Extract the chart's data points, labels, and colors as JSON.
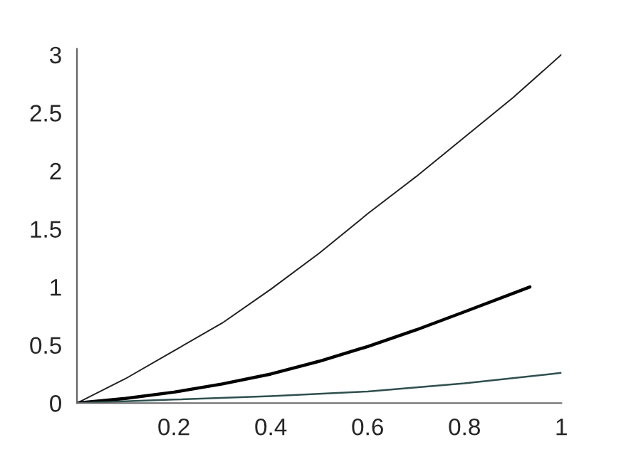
{
  "chart_data": {
    "type": "line",
    "series": [
      {
        "color": "#202020",
        "x": [
          0,
          0.1,
          0.2,
          0.3,
          0.4,
          0.5,
          0.6,
          0.7,
          0.8,
          0.9,
          1
        ],
        "values": [
          0,
          0.21,
          0.45,
          0.69,
          0.98,
          1.29,
          1.63,
          1.95,
          2.29,
          2.63,
          3
        ]
      },
      {
        "color": "#000000",
        "x": [
          0,
          0.1,
          0.2,
          0.3,
          0.4,
          0.5,
          0.6,
          0.7,
          0.8,
          0.935
        ],
        "values": [
          0,
          0.04,
          0.094,
          0.165,
          0.25,
          0.36,
          0.487,
          0.63,
          0.786,
          1.0
        ]
      },
      {
        "color": "#2f4f4f",
        "x": [
          0,
          0.2,
          0.4,
          0.6,
          0.8,
          1
        ],
        "values": [
          0,
          0.03,
          0.06,
          0.1,
          0.17,
          0.26
        ]
      }
    ],
    "xlim": [
      0,
      1
    ],
    "ylim": [
      0,
      3.05
    ],
    "xticks": [
      0.2,
      0.4,
      0.6,
      0.8,
      1
    ],
    "yticks": [
      0,
      0.5,
      1,
      1.5,
      2,
      2.5,
      3
    ],
    "grid": false,
    "legend": false,
    "marker": "none",
    "line_style": "solid"
  }
}
